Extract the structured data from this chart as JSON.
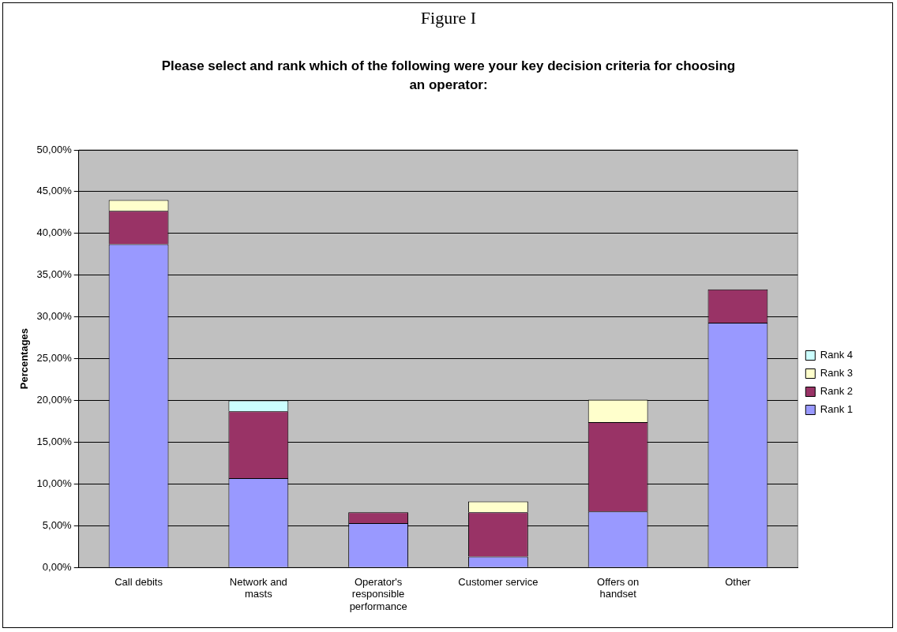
{
  "chart_data": {
    "type": "bar",
    "title": "Figure I",
    "subtitle": "Please select and rank which of the following were your key  decision criteria for choosing an operator:",
    "ylabel": "Percentages",
    "categories": [
      "Call debits",
      "Network and masts",
      "Operator's responsible performance",
      "Customer service",
      "Offers on handset",
      "Other"
    ],
    "stacked": true,
    "series": [
      {
        "name": "Rank 1",
        "color": "#9999ff",
        "values": [
          38.7,
          10.7,
          5.3,
          1.3,
          6.7,
          29.3
        ]
      },
      {
        "name": "Rank 2",
        "color": "#993366",
        "values": [
          4,
          8,
          1.3,
          5.3,
          10.7,
          4
        ]
      },
      {
        "name": "Rank 3",
        "color": "#ffffcc",
        "values": [
          1.3,
          0,
          0,
          1.3,
          2.7,
          0
        ]
      },
      {
        "name": "Rank 4",
        "color": "#ccffff",
        "values": [
          0,
          1.3,
          0,
          0,
          0,
          0
        ]
      }
    ],
    "ylim": [
      0,
      50
    ],
    "yticks": [
      {
        "value": 0,
        "label": "0,00%"
      },
      {
        "value": 5,
        "label": "5,00%"
      },
      {
        "value": 10,
        "label": "10,00%"
      },
      {
        "value": 15,
        "label": "15,00%"
      },
      {
        "value": 20,
        "label": "20,00%"
      },
      {
        "value": 25,
        "label": "25,00%"
      },
      {
        "value": 30,
        "label": "30,00%"
      },
      {
        "value": 35,
        "label": "35,00%"
      },
      {
        "value": 40,
        "label": "40,00%"
      },
      {
        "value": 45,
        "label": "45,00%"
      },
      {
        "value": 50,
        "label": "50,00%"
      }
    ],
    "grid": "y",
    "legend": "right"
  }
}
